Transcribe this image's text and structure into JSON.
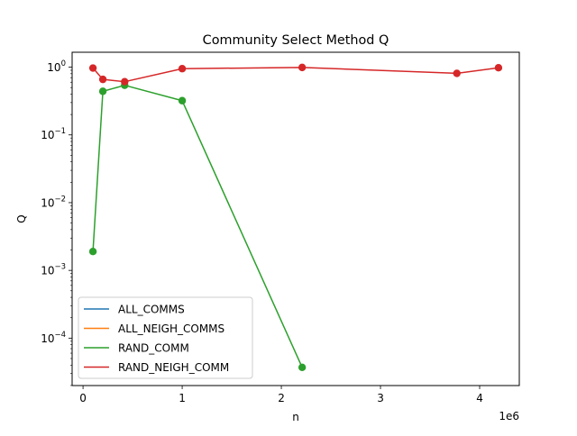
{
  "chart_data": {
    "type": "line",
    "title": "Community Select Method Q",
    "xlabel": "n",
    "ylabel": "Q",
    "x_offset_label": "1e6",
    "x_scale": "linear",
    "y_scale": "log",
    "xlim": [
      -110000,
      4400000
    ],
    "ylim_log10": [
      -4.7,
      0.22
    ],
    "x_ticks": [
      0,
      1,
      2,
      3,
      4
    ],
    "x_ticks_scale": 1000000,
    "y_ticks": [
      {
        "exp": -4,
        "base": "10",
        "sup": "−4"
      },
      {
        "exp": -3,
        "base": "10",
        "sup": "−3"
      },
      {
        "exp": -2,
        "base": "10",
        "sup": "−2"
      },
      {
        "exp": -1,
        "base": "10",
        "sup": "−1"
      },
      {
        "exp": 0,
        "base": "10",
        "sup": "0"
      }
    ],
    "grid": false,
    "legend_position": "lower-left",
    "series": [
      {
        "name": "ALL_COMMS",
        "color": "#1f77b4",
        "markers": false,
        "x": [],
        "y": []
      },
      {
        "name": "ALL_NEIGH_COMMS",
        "color": "#ff7f0e",
        "markers": false,
        "x": [],
        "y": []
      },
      {
        "name": "RAND_COMM",
        "color": "#2ca02c",
        "markers": true,
        "x": [
          100000,
          200000,
          420000,
          1000000,
          2210000
        ],
        "y": [
          0.0019,
          0.44,
          0.54,
          0.32,
          3.7e-05
        ]
      },
      {
        "name": "RAND_NEIGH_COMM",
        "color": "#d62728",
        "markers": true,
        "x": [
          100000,
          200000,
          420000,
          1000000,
          2210000,
          3770000,
          4190000
        ],
        "y": [
          0.97,
          0.66,
          0.61,
          0.95,
          0.99,
          0.81,
          0.98
        ]
      }
    ]
  }
}
